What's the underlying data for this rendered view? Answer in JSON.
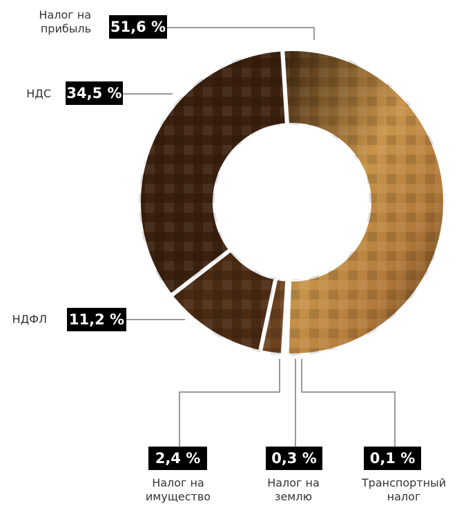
{
  "chart_data": {
    "type": "donut",
    "categories": [
      "Налог на прибыль",
      "Транспортный налог",
      "Налог на землю",
      "Налог на имущество",
      "НДФЛ",
      "НДС"
    ],
    "values": [
      51.6,
      0.1,
      0.3,
      2.4,
      11.2,
      34.5
    ],
    "value_labels": [
      "51,6 %",
      "0,1 %",
      "0,3 %",
      "2,4 %",
      "11,2 %",
      "34,5 %"
    ],
    "colors": [
      "#8a5a2a",
      "#5a3618",
      "#4e2e14",
      "#6a4220",
      "#4a2a12",
      "#3a200e"
    ]
  }
}
